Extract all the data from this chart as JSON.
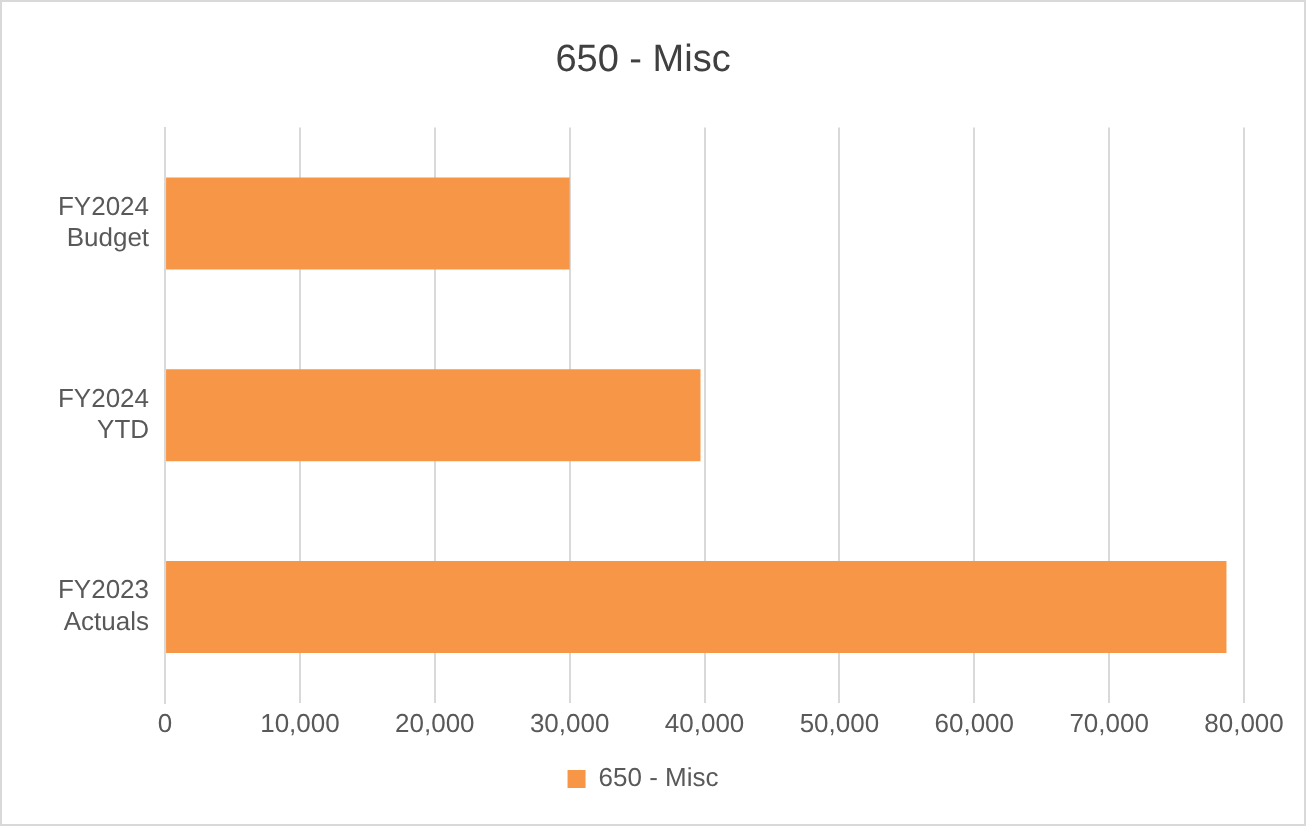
{
  "chart_data": {
    "type": "bar",
    "orientation": "horizontal",
    "title": "650 - Misc",
    "categories": [
      "FY2024 Budget",
      "FY2024 YTD",
      "FY2023 Actuals"
    ],
    "series": [
      {
        "name": "650 - Misc",
        "color": "#f79646",
        "values": [
          30000,
          39700,
          78700
        ]
      }
    ],
    "xlim": [
      0,
      80000
    ],
    "xticks": [
      0,
      {
        "value": 10000,
        "label": "10,000"
      },
      {
        "value": 20000,
        "label": "20,000"
      },
      {
        "value": 30000,
        "label": "30,000"
      },
      {
        "value": 40000,
        "label": "40,000"
      },
      {
        "value": 50000,
        "label": "50,000"
      },
      {
        "value": 60000,
        "label": "60,000"
      },
      {
        "value": 70000,
        "label": "70,000"
      },
      {
        "value": 80000,
        "label": "80,000"
      }
    ],
    "grid": "x",
    "legend": "bottom"
  }
}
